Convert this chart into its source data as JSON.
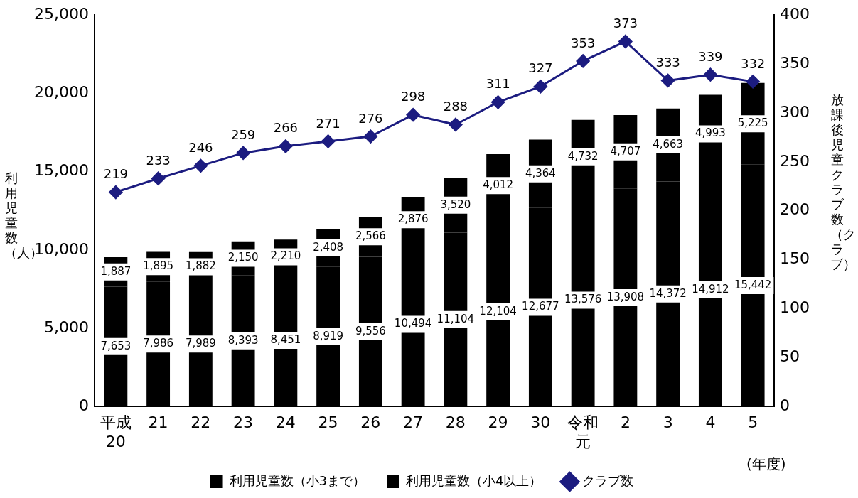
{
  "chart_data": {
    "type": "bar",
    "stacked": true,
    "categories": [
      "平成20",
      "21",
      "22",
      "23",
      "24",
      "25",
      "26",
      "27",
      "28",
      "29",
      "30",
      "令和元",
      "2",
      "3",
      "4",
      "5"
    ],
    "series": [
      {
        "name": "利用児童数（小3まで）",
        "color": "#000000",
        "values": [
          7653,
          7986,
          7989,
          8393,
          8451,
          8919,
          9556,
          10494,
          11104,
          12104,
          12677,
          13576,
          13908,
          14372,
          14912,
          15442
        ],
        "value_labels": [
          "7,653",
          "7,986",
          "7,989",
          "8,393",
          "8,451",
          "8,919",
          "9,556",
          "10,494",
          "11,104",
          "12,104",
          "12,677",
          "13,576",
          "13,908",
          "14,372",
          "14,912",
          "15,442"
        ]
      },
      {
        "name": "利用児童数（小4以上）",
        "color": "#000000",
        "values": [
          1887,
          1895,
          1882,
          2150,
          2210,
          2408,
          2566,
          2876,
          3520,
          4012,
          4364,
          4732,
          4707,
          4663,
          4993,
          5225
        ],
        "value_labels": [
          "1,887",
          "1,895",
          "1,882",
          "2,150",
          "2,210",
          "2,408",
          "2,566",
          "2,876",
          "3,520",
          "4,012",
          "4,364",
          "4,732",
          "4,707",
          "4,663",
          "4,993",
          "5,225"
        ]
      },
      {
        "name": "クラブ数",
        "type": "line",
        "axis": "y2",
        "color": "#1c1c80",
        "values": [
          219,
          233,
          246,
          259,
          266,
          271,
          276,
          298,
          288,
          311,
          327,
          353,
          373,
          333,
          339,
          332
        ],
        "value_labels": [
          "219",
          "233",
          "246",
          "259",
          "266",
          "271",
          "276",
          "298",
          "288",
          "311",
          "327",
          "353",
          "373",
          "333",
          "339",
          "332"
        ]
      }
    ],
    "ylim": [
      0,
      25000
    ],
    "yticks": [
      {
        "value": 0,
        "label": "0"
      },
      {
        "value": 5000,
        "label": "5,000"
      },
      {
        "value": 10000,
        "label": "10,000"
      },
      {
        "value": 15000,
        "label": "15,000"
      },
      {
        "value": 20000,
        "label": "20,000"
      },
      {
        "value": 25000,
        "label": "25,000"
      }
    ],
    "y2lim": [
      0,
      400
    ],
    "y2ticks": [
      0,
      50,
      100,
      150,
      200,
      250,
      300,
      350,
      400
    ],
    "ylabel": "利用児童数（人）",
    "y2label": "放課後児童クラブ数（クラブ）",
    "xlabel": "(年度)",
    "legend": "bottom",
    "marker": "diamond",
    "line_style": "solid"
  }
}
